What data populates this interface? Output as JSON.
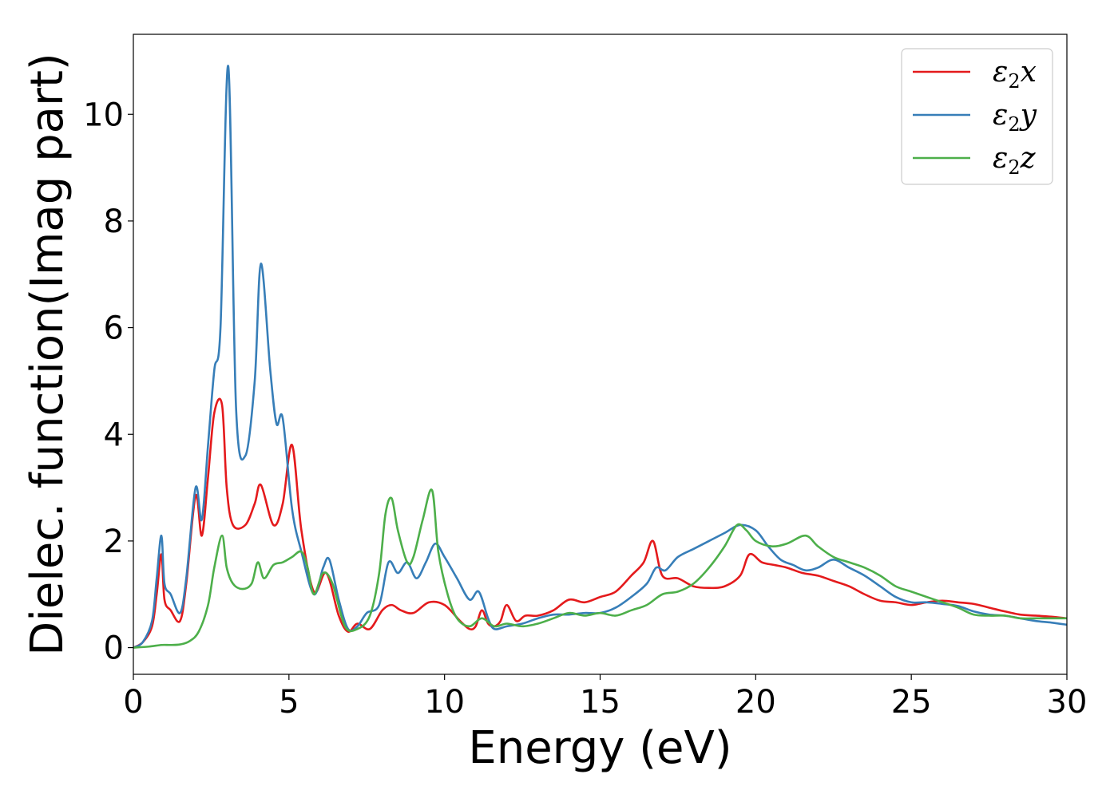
{
  "chart_data": {
    "type": "line",
    "title": "",
    "xlabel": "Energy (eV)",
    "ylabel": "Dielec. function(Imag part)",
    "xlim": [
      0,
      30
    ],
    "ylim": [
      -0.5,
      11.5
    ],
    "xticks": [
      0,
      5,
      10,
      15,
      20,
      25,
      30
    ],
    "yticks": [
      0,
      2,
      4,
      6,
      8,
      10
    ],
    "grid": false,
    "legend_position": "top-right",
    "series": [
      {
        "name": "ε2x",
        "legend": {
          "main": "ε",
          "sub": "2",
          "tail": "x"
        },
        "color": "#e41a1c",
        "x": [
          0,
          0.3,
          0.6,
          0.75,
          0.9,
          1.0,
          1.2,
          1.5,
          1.7,
          2.0,
          2.2,
          2.4,
          2.6,
          2.85,
          3.0,
          3.2,
          3.6,
          3.9,
          4.1,
          4.5,
          4.8,
          5.1,
          5.4,
          5.8,
          6.2,
          6.6,
          6.9,
          7.2,
          7.6,
          8.0,
          8.3,
          8.6,
          9.0,
          9.5,
          10.0,
          10.5,
          10.8,
          11.0,
          11.2,
          11.4,
          11.6,
          11.8,
          12.0,
          12.3,
          12.6,
          13.0,
          13.5,
          14.0,
          14.5,
          15.0,
          15.5,
          16.0,
          16.4,
          16.7,
          17.0,
          17.5,
          18.0,
          18.5,
          19.0,
          19.5,
          19.8,
          20.2,
          20.6,
          21.0,
          21.5,
          22.0,
          22.5,
          23.0,
          23.5,
          24.0,
          24.5,
          25.0,
          25.5,
          26.0,
          26.5,
          27.0,
          27.5,
          28.0,
          28.5,
          29.0,
          29.5,
          30.0
        ],
        "y": [
          0.0,
          0.1,
          0.4,
          1.0,
          1.75,
          0.9,
          0.7,
          0.5,
          1.2,
          2.85,
          2.1,
          3.2,
          4.4,
          4.55,
          3.0,
          2.3,
          2.3,
          2.7,
          3.05,
          2.3,
          2.7,
          3.8,
          2.2,
          1.05,
          1.4,
          0.6,
          0.3,
          0.45,
          0.35,
          0.7,
          0.8,
          0.7,
          0.65,
          0.85,
          0.8,
          0.5,
          0.35,
          0.4,
          0.7,
          0.45,
          0.4,
          0.5,
          0.8,
          0.5,
          0.6,
          0.6,
          0.7,
          0.9,
          0.85,
          0.95,
          1.05,
          1.35,
          1.6,
          2.0,
          1.35,
          1.3,
          1.15,
          1.12,
          1.15,
          1.35,
          1.75,
          1.6,
          1.55,
          1.5,
          1.4,
          1.35,
          1.25,
          1.15,
          1.0,
          0.88,
          0.85,
          0.8,
          0.85,
          0.88,
          0.85,
          0.82,
          0.75,
          0.68,
          0.62,
          0.6,
          0.58,
          0.55
        ]
      },
      {
        "name": "ε2y",
        "legend": {
          "main": "ε",
          "sub": "2",
          "tail": "y"
        },
        "color": "#377eb8",
        "x": [
          0,
          0.3,
          0.6,
          0.75,
          0.9,
          1.0,
          1.2,
          1.5,
          1.7,
          2.0,
          2.2,
          2.4,
          2.6,
          2.8,
          3.05,
          3.3,
          3.6,
          3.9,
          4.1,
          4.4,
          4.6,
          4.8,
          5.1,
          5.4,
          5.8,
          6.1,
          6.3,
          6.6,
          6.9,
          7.2,
          7.5,
          7.9,
          8.2,
          8.5,
          8.8,
          9.1,
          9.4,
          9.7,
          10.0,
          10.4,
          10.8,
          11.1,
          11.4,
          11.6,
          12.0,
          12.5,
          13.0,
          13.5,
          14.0,
          14.5,
          15.0,
          15.5,
          16.0,
          16.5,
          16.8,
          17.1,
          17.5,
          18.0,
          18.5,
          19.0,
          19.5,
          20.0,
          20.4,
          20.8,
          21.2,
          21.6,
          22.0,
          22.5,
          23.0,
          23.5,
          24.0,
          24.5,
          25.0,
          25.5,
          26.0,
          26.5,
          27.0,
          27.5,
          28.0,
          28.5,
          29.0,
          29.5,
          30.0
        ],
        "y": [
          0.0,
          0.1,
          0.5,
          1.3,
          2.1,
          1.2,
          1.0,
          0.65,
          1.3,
          3.0,
          2.4,
          3.8,
          5.2,
          6.0,
          10.9,
          4.5,
          3.6,
          5.0,
          7.2,
          5.2,
          4.2,
          4.3,
          2.6,
          1.8,
          1.0,
          1.5,
          1.65,
          0.9,
          0.35,
          0.4,
          0.65,
          0.8,
          1.6,
          1.4,
          1.6,
          1.3,
          1.6,
          1.95,
          1.7,
          1.3,
          0.9,
          1.05,
          0.55,
          0.35,
          0.4,
          0.45,
          0.55,
          0.62,
          0.62,
          0.65,
          0.65,
          0.75,
          0.95,
          1.2,
          1.5,
          1.45,
          1.7,
          1.85,
          2.0,
          2.15,
          2.3,
          2.2,
          1.9,
          1.65,
          1.55,
          1.45,
          1.5,
          1.65,
          1.5,
          1.35,
          1.15,
          0.95,
          0.85,
          0.85,
          0.82,
          0.78,
          0.68,
          0.62,
          0.6,
          0.55,
          0.5,
          0.47,
          0.43
        ]
      },
      {
        "name": "ε2z",
        "legend": {
          "main": "ε",
          "sub": "2",
          "tail": "z"
        },
        "color": "#4daf4a",
        "x": [
          0,
          0.5,
          0.9,
          1.2,
          1.5,
          1.8,
          2.1,
          2.4,
          2.6,
          2.85,
          3.0,
          3.2,
          3.5,
          3.8,
          4.0,
          4.2,
          4.5,
          4.8,
          5.1,
          5.4,
          5.6,
          5.8,
          6.1,
          6.4,
          6.8,
          7.2,
          7.6,
          7.9,
          8.1,
          8.3,
          8.5,
          8.8,
          9.0,
          9.3,
          9.6,
          9.8,
          10.1,
          10.4,
          10.8,
          11.2,
          11.6,
          12.0,
          12.5,
          13.0,
          13.5,
          14.0,
          14.5,
          15.0,
          15.5,
          16.0,
          16.5,
          17.0,
          17.5,
          18.0,
          18.5,
          19.0,
          19.4,
          19.7,
          20.0,
          20.5,
          21.0,
          21.6,
          22.0,
          22.5,
          23.0,
          23.5,
          24.0,
          24.5,
          25.0,
          25.5,
          26.0,
          26.5,
          27.0,
          27.5,
          28.0,
          28.5,
          29.0,
          29.5,
          30.0
        ],
        "y": [
          0.0,
          0.02,
          0.05,
          0.05,
          0.06,
          0.12,
          0.3,
          0.8,
          1.5,
          2.1,
          1.5,
          1.2,
          1.1,
          1.2,
          1.6,
          1.3,
          1.55,
          1.6,
          1.7,
          1.8,
          1.5,
          1.0,
          1.4,
          1.2,
          0.4,
          0.35,
          0.6,
          1.4,
          2.5,
          2.8,
          2.2,
          1.6,
          1.7,
          2.4,
          2.95,
          1.8,
          1.0,
          0.55,
          0.4,
          0.55,
          0.4,
          0.45,
          0.4,
          0.45,
          0.55,
          0.65,
          0.6,
          0.65,
          0.6,
          0.7,
          0.8,
          1.0,
          1.05,
          1.2,
          1.5,
          1.9,
          2.3,
          2.2,
          2.0,
          1.9,
          1.95,
          2.1,
          1.9,
          1.7,
          1.6,
          1.5,
          1.35,
          1.15,
          1.05,
          0.95,
          0.85,
          0.75,
          0.62,
          0.6,
          0.6,
          0.55,
          0.55,
          0.55,
          0.55
        ]
      }
    ]
  }
}
